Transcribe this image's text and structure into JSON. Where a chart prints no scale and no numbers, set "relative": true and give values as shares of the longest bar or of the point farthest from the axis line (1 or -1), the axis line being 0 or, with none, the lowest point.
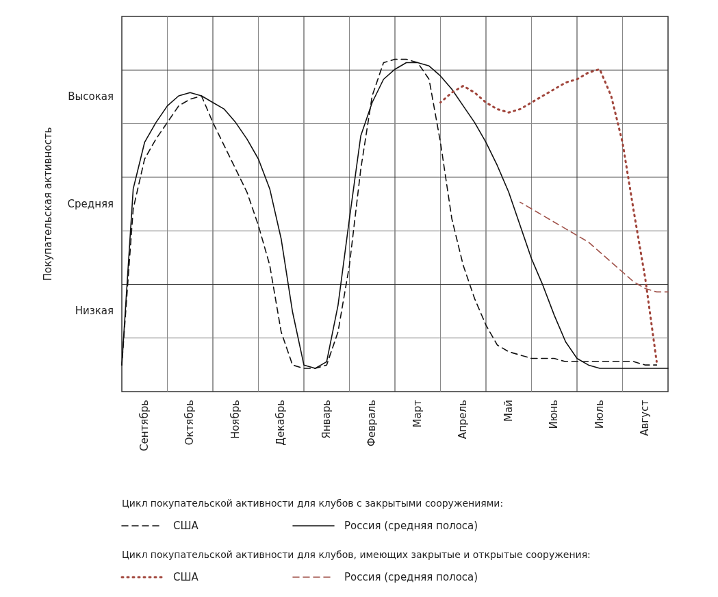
{
  "chart_data": {
    "type": "line",
    "relative": true,
    "categories": [
      null,
      null,
      "Сентябрь",
      null,
      null,
      null,
      "Октябрь",
      null,
      null,
      null,
      "Ноябрь",
      null,
      null,
      null,
      "Декабрь",
      null,
      null,
      null,
      "Январь",
      null,
      null,
      null,
      "Февраль",
      null,
      null,
      null,
      "Март",
      null,
      null,
      null,
      "Апрель",
      null,
      null,
      null,
      "Май",
      null,
      null,
      null,
      "Июнь",
      null,
      null,
      null,
      "Июль",
      null,
      null,
      null,
      "Август",
      null,
      null
    ],
    "grid": true,
    "legend": "bottom",
    "annotations": [
      "Цикл покупательской активности для клубов с закрытыми сооружениями:",
      "Цикл покупательской активности для клубов, имеющих закрытые и открытые сооружения:",
      "Высокая",
      "Средняя",
      "Низкая",
      "Покупательская активность"
    ],
    "series": [
      {
        "name": "США",
        "color": "#111111",
        "line_style": "dashed",
        "values": [
          0.08,
          0.55,
          0.7,
          0.76,
          0.81,
          0.86,
          0.88,
          0.89,
          0.81,
          0.74,
          0.67,
          0.6,
          0.5,
          0.38,
          0.18,
          0.08,
          0.07,
          0.07,
          0.08,
          0.18,
          0.38,
          0.67,
          0.89,
          0.99,
          1,
          1,
          0.99,
          0.94,
          0.75,
          0.52,
          0.38,
          0.28,
          0.2,
          0.14,
          0.12,
          0.11,
          0.1,
          0.1,
          0.1,
          0.09,
          0.09,
          0.09,
          0.09,
          0.09,
          0.09,
          0.09,
          0.08,
          0.08,
          null
        ]
      },
      {
        "name": "Россия (средняя полоса)",
        "color": "#111111",
        "line_style": "solid",
        "values": [
          0.08,
          0.61,
          0.75,
          0.81,
          0.86,
          0.89,
          0.9,
          0.89,
          0.87,
          0.85,
          0.81,
          0.76,
          0.7,
          0.61,
          0.46,
          0.24,
          0.08,
          0.07,
          0.09,
          0.26,
          0.52,
          0.77,
          0.87,
          0.94,
          0.97,
          0.99,
          0.99,
          0.98,
          0.95,
          0.91,
          0.86,
          0.81,
          0.75,
          0.68,
          0.6,
          0.5,
          0.4,
          0.32,
          0.23,
          0.15,
          0.1,
          0.08,
          0.07,
          0.07,
          0.07,
          0.07,
          0.07,
          0.07,
          0.07
        ]
      },
      {
        "name": "США",
        "color": "#a0443a",
        "line_style": "dotted",
        "values": [
          null,
          null,
          null,
          null,
          null,
          null,
          null,
          null,
          null,
          null,
          null,
          null,
          null,
          null,
          null,
          null,
          null,
          null,
          null,
          null,
          null,
          null,
          null,
          null,
          null,
          null,
          null,
          null,
          0.87,
          0.9,
          0.92,
          0.9,
          0.87,
          0.85,
          0.84,
          0.85,
          0.87,
          0.89,
          0.91,
          0.93,
          0.94,
          0.96,
          0.97,
          0.89,
          0.75,
          0.54,
          0.34,
          0.09,
          null
        ]
      },
      {
        "name": "Россия (средняя полоса)",
        "color": "#a0524a",
        "line_style": "dashed",
        "values": [
          null,
          null,
          null,
          null,
          null,
          null,
          null,
          null,
          null,
          null,
          null,
          null,
          null,
          null,
          null,
          null,
          null,
          null,
          null,
          null,
          null,
          null,
          null,
          null,
          null,
          null,
          null,
          null,
          null,
          null,
          null,
          null,
          null,
          null,
          null,
          0.57,
          0.55,
          0.53,
          0.51,
          0.49,
          0.47,
          0.45,
          0.42,
          0.39,
          0.36,
          0.33,
          0.31,
          0.3,
          0.3
        ]
      }
    ]
  }
}
